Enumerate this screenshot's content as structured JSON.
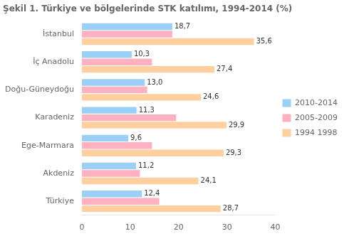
{
  "chart_data": {
    "type": "bar",
    "orientation": "horizontal",
    "title": "Şekil 1. Türkiye ve bölgelerinde STK katılımı, 1994-2014 (%)",
    "categories": [
      "İstanbul",
      "İç Anadolu",
      "Doğu-Güneydoğu",
      "Karadeniz",
      "Ege-Marmara",
      "Akdeniz",
      "Türkiye"
    ],
    "series": [
      {
        "name": "2010-2014",
        "values": [
          18.7,
          10.3,
          13.0,
          11.3,
          9.6,
          11.2,
          12.4
        ],
        "data_labels": true,
        "value_labels": [
          "18,7",
          "10,3",
          "13,0",
          "11,3",
          "9,6",
          "11,2",
          "12,4"
        ]
      },
      {
        "name": "2005-2009",
        "values": [
          18.7,
          14.5,
          13.5,
          19.5,
          14.5,
          12.0,
          16.0
        ]
      },
      {
        "name": "1994 1998",
        "values": [
          35.6,
          27.4,
          24.6,
          29.9,
          29.3,
          24.1,
          28.7
        ],
        "data_labels": true,
        "value_labels": [
          "35,6",
          "27,4",
          "24,6",
          "29,9",
          "29,3",
          "24,1",
          "28,7"
        ]
      }
    ],
    "xlim": [
      0,
      40
    ],
    "xticks": [
      0,
      10,
      20,
      30,
      40
    ],
    "grid": false,
    "legend": "right"
  }
}
